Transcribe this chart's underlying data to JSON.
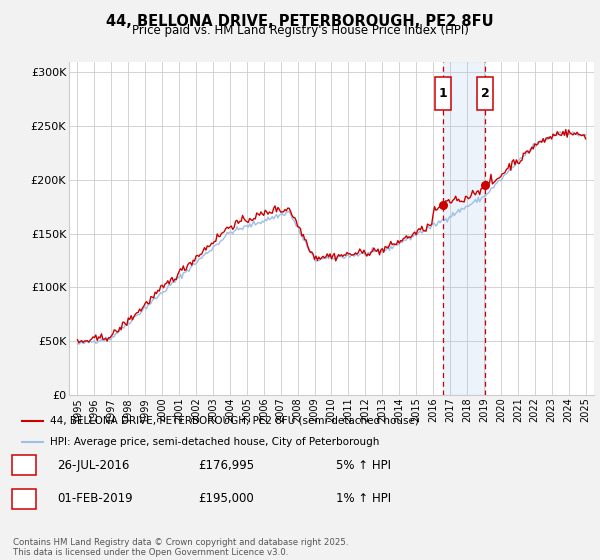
{
  "title": "44, BELLONA DRIVE, PETERBOROUGH, PE2 8FU",
  "subtitle": "Price paid vs. HM Land Registry's House Price Index (HPI)",
  "bg_color": "#f2f2f2",
  "plot_bg_color": "#ffffff",
  "grid_color": "#cccccc",
  "hpi_color": "#9ebfe8",
  "price_color": "#cc0000",
  "marker1_x": 2016.57,
  "marker1_y": 176995,
  "marker2_x": 2019.08,
  "marker2_y": 195000,
  "marker1_date": "26-JUL-2016",
  "marker1_price": "£176,995",
  "marker1_hpi": "5% ↑ HPI",
  "marker2_date": "01-FEB-2019",
  "marker2_price": "£195,000",
  "marker2_hpi": "1% ↑ HPI",
  "ylim_min": 0,
  "ylim_max": 310000,
  "xlim_min": 1994.5,
  "xlim_max": 2025.5,
  "yticks": [
    0,
    50000,
    100000,
    150000,
    200000,
    250000,
    300000
  ],
  "ytick_labels": [
    "£0",
    "£50K",
    "£100K",
    "£150K",
    "£200K",
    "£250K",
    "£300K"
  ],
  "xticks": [
    1995,
    1996,
    1997,
    1998,
    1999,
    2000,
    2001,
    2002,
    2003,
    2004,
    2005,
    2006,
    2007,
    2008,
    2009,
    2010,
    2011,
    2012,
    2013,
    2014,
    2015,
    2016,
    2017,
    2018,
    2019,
    2020,
    2021,
    2022,
    2023,
    2024,
    2025
  ],
  "legend_house_label": "44, BELLONA DRIVE, PETERBOROUGH, PE2 8FU (semi-detached house)",
  "legend_hpi_label": "HPI: Average price, semi-detached house, City of Peterborough",
  "footer_text": "Contains HM Land Registry data © Crown copyright and database right 2025.\nThis data is licensed under the Open Government Licence v3.0.",
  "shade_start": 2016.57,
  "shade_end": 2019.08
}
